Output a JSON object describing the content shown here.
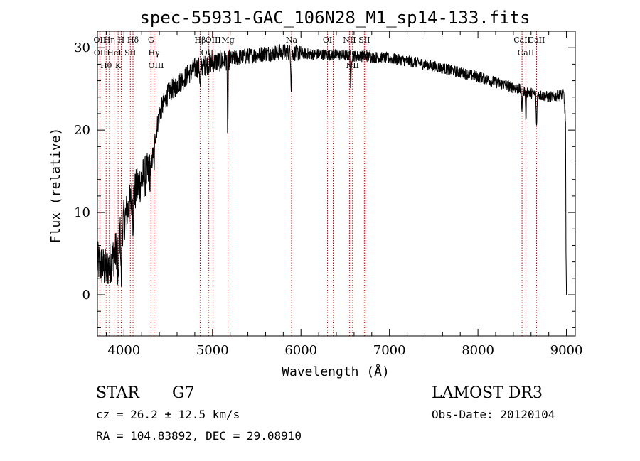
{
  "chart_data": {
    "type": "line",
    "title": "spec-55931-GAC_106N28_M1_sp14-133.fits",
    "xlabel": "Wavelength (Å)",
    "ylabel": "Flux (relative)",
    "xlim": [
      3700,
      9100
    ],
    "ylim": [
      -5,
      32
    ],
    "xticks": [
      4000,
      5000,
      6000,
      7000,
      8000,
      9000
    ],
    "yticks": [
      0,
      10,
      20,
      30
    ],
    "xtick_labels": [
      "4000",
      "5000",
      "6000",
      "7000",
      "8000",
      "9000"
    ],
    "ytick_labels": [
      "0",
      "10",
      "20",
      "30"
    ],
    "series": [
      {
        "name": "spectrum",
        "continuum": [
          [
            3700,
            4
          ],
          [
            3800,
            3
          ],
          [
            3900,
            5
          ],
          [
            4000,
            9
          ],
          [
            4100,
            12
          ],
          [
            4200,
            14
          ],
          [
            4300,
            15
          ],
          [
            4350,
            19
          ],
          [
            4400,
            22
          ],
          [
            4500,
            24.5
          ],
          [
            4600,
            25.5
          ],
          [
            4700,
            26.5
          ],
          [
            4800,
            27.5
          ],
          [
            4900,
            27.8
          ],
          [
            5000,
            28.2
          ],
          [
            5100,
            28.4
          ],
          [
            5200,
            28.6
          ],
          [
            5400,
            29
          ],
          [
            5600,
            29.3
          ],
          [
            5800,
            29.5
          ],
          [
            6000,
            29.3
          ],
          [
            6200,
            29.2
          ],
          [
            6400,
            29.1
          ],
          [
            6600,
            29
          ],
          [
            6800,
            28.9
          ],
          [
            7000,
            28.7
          ],
          [
            7200,
            28.4
          ],
          [
            7400,
            28
          ],
          [
            7600,
            27.5
          ],
          [
            7800,
            27
          ],
          [
            8000,
            26.5
          ],
          [
            8200,
            25.8
          ],
          [
            8400,
            25.2
          ],
          [
            8600,
            24.5
          ],
          [
            8800,
            24
          ],
          [
            8970,
            24.3
          ],
          [
            8990,
            21
          ],
          [
            8995,
            5
          ],
          [
            9000,
            0
          ]
        ],
        "absorption_features": [
          [
            3934,
            6
          ],
          [
            3969,
            6
          ],
          [
            4102,
            3
          ],
          [
            4340,
            3
          ],
          [
            4861,
            2.5
          ],
          [
            5172,
            9
          ],
          [
            5890,
            4
          ],
          [
            6563,
            4.5
          ],
          [
            8498,
            2.5
          ],
          [
            8542,
            3.5
          ],
          [
            8662,
            4
          ]
        ]
      }
    ],
    "spectral_lines": [
      {
        "name": "Hθ",
        "wavelength": 3798
      },
      {
        "name": "OII",
        "wavelength": 3727
      },
      {
        "name": "OII",
        "wavelength": 3729
      },
      {
        "name": "HeI",
        "wavelength": 3889
      },
      {
        "name": "Hη",
        "wavelength": 3835
      },
      {
        "name": "K",
        "wavelength": 3934
      },
      {
        "name": "H",
        "wavelength": 3969
      },
      {
        "name": "SII",
        "wavelength": 4072
      },
      {
        "name": "Hδ",
        "wavelength": 4102
      },
      {
        "name": "OIII",
        "wavelength": 4363
      },
      {
        "name": "Hγ",
        "wavelength": 4340
      },
      {
        "name": "G",
        "wavelength": 4305
      },
      {
        "name": "Hβ",
        "wavelength": 4861
      },
      {
        "name": "OIII",
        "wavelength": 4959
      },
      {
        "name": "OIII",
        "wavelength": 5007
      },
      {
        "name": "Mg",
        "wavelength": 5175
      },
      {
        "name": "Na",
        "wavelength": 5894
      },
      {
        "name": "OI",
        "wavelength": 6300
      },
      {
        "name": "OI",
        "wavelength": 6364
      },
      {
        "name": "NII",
        "wavelength": 6548
      },
      {
        "name": "Hα",
        "wavelength": 6563
      },
      {
        "name": "NII",
        "wavelength": 6583
      },
      {
        "name": "SII",
        "wavelength": 6716
      },
      {
        "name": "SII",
        "wavelength": 6731
      },
      {
        "name": "CaII",
        "wavelength": 8498
      },
      {
        "name": "CaII",
        "wavelength": 8542
      },
      {
        "name": "CaII",
        "wavelength": 8662
      }
    ]
  },
  "info": {
    "class": "STAR",
    "subclass": "G7",
    "survey": "LAMOST DR3",
    "cz": "cz = 26.2 ± 12.5 km/s",
    "obs_date": "Obs-Date: 20120104",
    "coords": "RA = 104.83892, DEC =  29.08910"
  },
  "colors": {
    "spectrum": "#000000",
    "line_marker": "#cc0000",
    "axes": "#000000",
    "background": "#ffffff"
  }
}
